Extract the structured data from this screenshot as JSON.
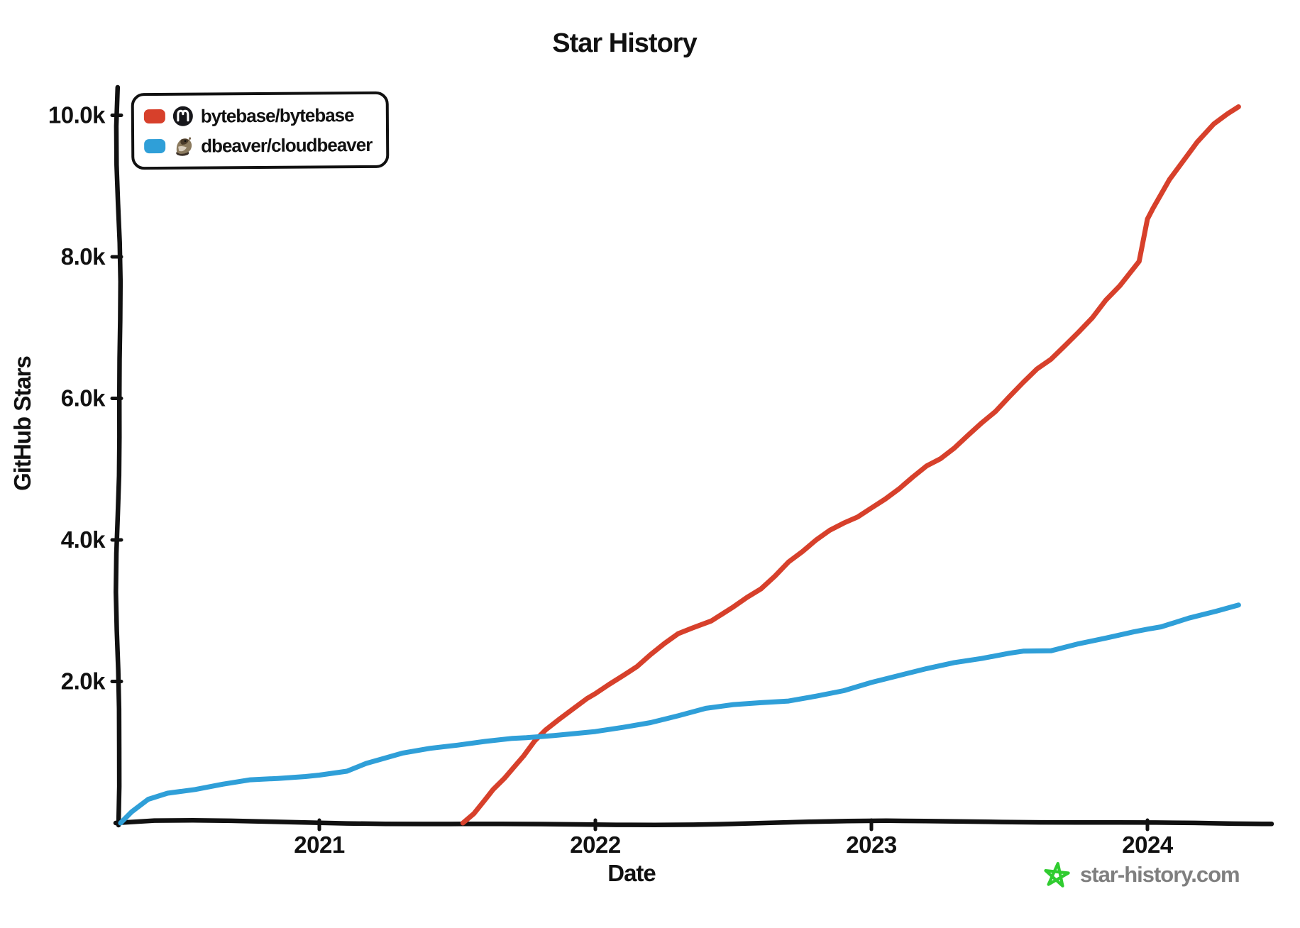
{
  "title": "Star History",
  "x_axis": {
    "label": "Date",
    "ticks": [
      {
        "label": "2021",
        "value": 2021
      },
      {
        "label": "2022",
        "value": 2022
      },
      {
        "label": "2023",
        "value": 2023
      },
      {
        "label": "2024",
        "value": 2024
      }
    ]
  },
  "y_axis": {
    "label": "GitHub Stars",
    "ticks": [
      {
        "label": "2.0k",
        "value": 2000
      },
      {
        "label": "4.0k",
        "value": 4000
      },
      {
        "label": "6.0k",
        "value": 6000
      },
      {
        "label": "8.0k",
        "value": 8000
      },
      {
        "label": "10.0k",
        "value": 10000
      }
    ]
  },
  "legend": {
    "items": [
      {
        "label": "bytebase/bytebase",
        "color": "#d7402b",
        "icon": "bytebase-avatar-icon"
      },
      {
        "label": "dbeaver/cloudbeaver",
        "color": "#2f9fd8",
        "icon": "beaver-avatar-icon"
      }
    ]
  },
  "watermark": {
    "text": "star-history.com",
    "star_color": "#30cc30"
  },
  "colors": {
    "axis": "#111111",
    "series_red": "#d7402b",
    "series_blue": "#2f9fd8",
    "watermark_text": "#7f7f7f"
  },
  "chart_data": {
    "type": "line",
    "title": "Star History",
    "xlabel": "Date",
    "ylabel": "GitHub Stars",
    "x_unit": "decimal_year",
    "xlim": [
      2020.27,
      2024.42
    ],
    "ylim": [
      0,
      10400
    ],
    "grid": false,
    "legend_position": "top-left",
    "series": [
      {
        "name": "bytebase/bytebase",
        "color": "#d7402b",
        "points": [
          [
            2021.52,
            0
          ],
          [
            2021.56,
            150
          ],
          [
            2021.6,
            350
          ],
          [
            2021.63,
            500
          ],
          [
            2021.67,
            650
          ],
          [
            2021.7,
            780
          ],
          [
            2021.74,
            950
          ],
          [
            2021.78,
            1150
          ],
          [
            2021.82,
            1300
          ],
          [
            2021.87,
            1450
          ],
          [
            2021.92,
            1600
          ],
          [
            2021.97,
            1750
          ],
          [
            2022.0,
            1820
          ],
          [
            2022.05,
            1950
          ],
          [
            2022.1,
            2070
          ],
          [
            2022.15,
            2200
          ],
          [
            2022.2,
            2380
          ],
          [
            2022.25,
            2550
          ],
          [
            2022.3,
            2700
          ],
          [
            2022.35,
            2780
          ],
          [
            2022.42,
            2870
          ],
          [
            2022.5,
            3050
          ],
          [
            2022.55,
            3180
          ],
          [
            2022.6,
            3300
          ],
          [
            2022.65,
            3480
          ],
          [
            2022.7,
            3680
          ],
          [
            2022.75,
            3820
          ],
          [
            2022.8,
            3980
          ],
          [
            2022.85,
            4120
          ],
          [
            2022.9,
            4230
          ],
          [
            2022.95,
            4330
          ],
          [
            2023.0,
            4470
          ],
          [
            2023.05,
            4600
          ],
          [
            2023.1,
            4740
          ],
          [
            2023.15,
            4900
          ],
          [
            2023.2,
            5050
          ],
          [
            2023.25,
            5150
          ],
          [
            2023.3,
            5300
          ],
          [
            2023.35,
            5480
          ],
          [
            2023.4,
            5650
          ],
          [
            2023.45,
            5800
          ],
          [
            2023.5,
            6000
          ],
          [
            2023.55,
            6200
          ],
          [
            2023.6,
            6400
          ],
          [
            2023.65,
            6550
          ],
          [
            2023.7,
            6750
          ],
          [
            2023.75,
            6950
          ],
          [
            2023.8,
            7150
          ],
          [
            2023.85,
            7400
          ],
          [
            2023.9,
            7600
          ],
          [
            2023.94,
            7800
          ],
          [
            2023.97,
            7950
          ],
          [
            2024.0,
            8550
          ],
          [
            2024.02,
            8700
          ],
          [
            2024.08,
            9100
          ],
          [
            2024.13,
            9350
          ],
          [
            2024.18,
            9600
          ],
          [
            2024.24,
            9850
          ],
          [
            2024.29,
            10000
          ],
          [
            2024.33,
            10120
          ]
        ]
      },
      {
        "name": "dbeaver/cloudbeaver",
        "color": "#2f9fd8",
        "points": [
          [
            2020.28,
            0
          ],
          [
            2020.32,
            150
          ],
          [
            2020.38,
            330
          ],
          [
            2020.45,
            430
          ],
          [
            2020.55,
            500
          ],
          [
            2020.65,
            560
          ],
          [
            2020.75,
            600
          ],
          [
            2020.85,
            620
          ],
          [
            2020.95,
            645
          ],
          [
            2021.0,
            660
          ],
          [
            2021.1,
            720
          ],
          [
            2021.17,
            850
          ],
          [
            2021.23,
            930
          ],
          [
            2021.3,
            1010
          ],
          [
            2021.4,
            1060
          ],
          [
            2021.5,
            1100
          ],
          [
            2021.6,
            1150
          ],
          [
            2021.7,
            1175
          ],
          [
            2021.75,
            1180
          ],
          [
            2021.85,
            1230
          ],
          [
            2021.95,
            1290
          ],
          [
            2022.0,
            1310
          ],
          [
            2022.1,
            1360
          ],
          [
            2022.2,
            1430
          ],
          [
            2022.3,
            1520
          ],
          [
            2022.4,
            1600
          ],
          [
            2022.5,
            1650
          ],
          [
            2022.6,
            1700
          ],
          [
            2022.7,
            1730
          ],
          [
            2022.8,
            1800
          ],
          [
            2022.9,
            1890
          ],
          [
            2023.0,
            2000
          ],
          [
            2023.1,
            2070
          ],
          [
            2023.2,
            2160
          ],
          [
            2023.3,
            2260
          ],
          [
            2023.4,
            2320
          ],
          [
            2023.5,
            2400
          ],
          [
            2023.55,
            2440
          ],
          [
            2023.65,
            2460
          ],
          [
            2023.75,
            2540
          ],
          [
            2023.85,
            2600
          ],
          [
            2023.95,
            2690
          ],
          [
            2024.0,
            2730
          ],
          [
            2024.05,
            2760
          ],
          [
            2024.15,
            2880
          ],
          [
            2024.25,
            3000
          ],
          [
            2024.33,
            3080
          ]
        ]
      }
    ]
  }
}
